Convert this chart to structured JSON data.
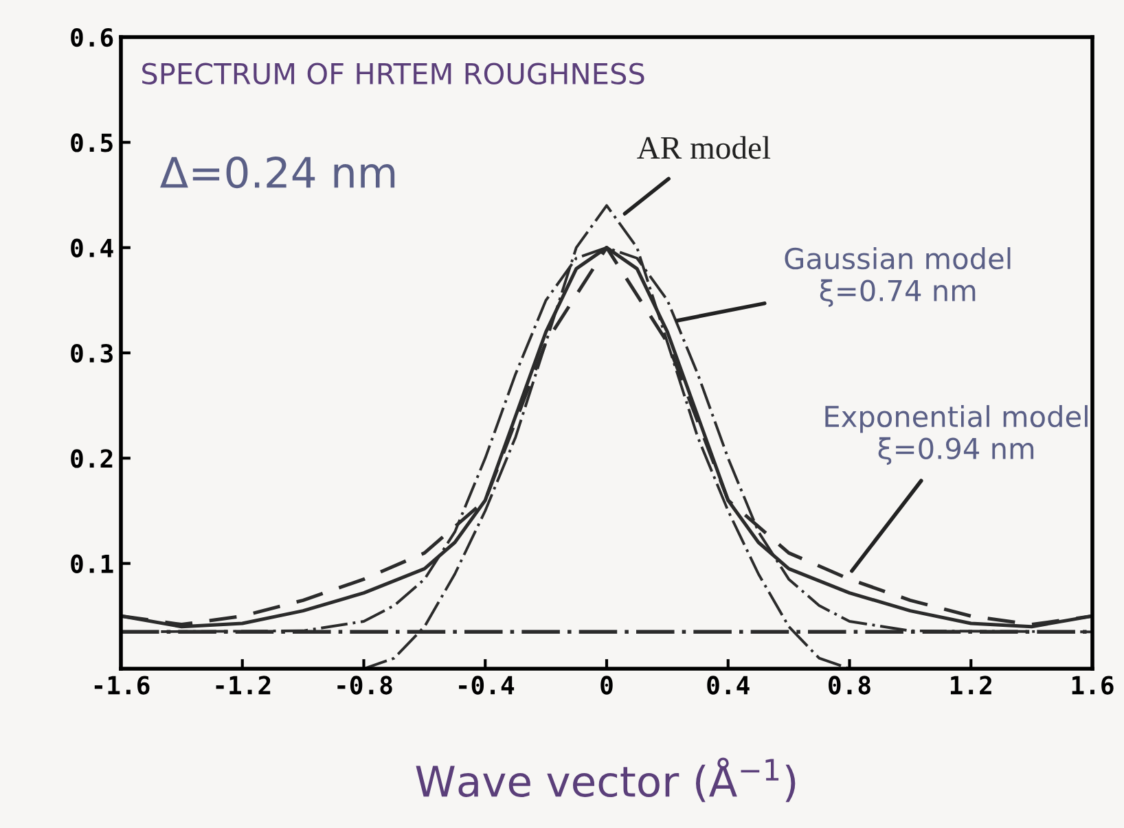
{
  "chart_data": {
    "type": "line",
    "title": "SPECTRUM OF HRTEM ROUGHNESS",
    "xlabel": "Wave vector (Å$^{−1}$)",
    "series": [
      {
        "color": "#2b2b2b",
        "line_style": "dashdot",
        "x": [
          -1.6,
          -0.8,
          -0.7,
          -0.6,
          -0.5,
          -0.4,
          -0.3,
          -0.2,
          -0.1,
          0,
          0.1,
          0.2,
          0.3,
          0.4,
          0.5,
          0.6,
          0.7,
          0.8,
          1.6
        ],
        "values": [
          0,
          0,
          0.01,
          0.04,
          0.09,
          0.15,
          0.22,
          0.31,
          0.4,
          0.44,
          0.4,
          0.31,
          0.22,
          0.15,
          0.09,
          0.04,
          0.01,
          0,
          0
        ]
      },
      {
        "color": "#2b2b2b",
        "line_style": "dashdot",
        "x": [
          -1.6,
          -1.0,
          -0.8,
          -0.7,
          -0.6,
          -0.5,
          -0.4,
          -0.3,
          -0.2,
          -0.1,
          0,
          0.1,
          0.2,
          0.3,
          0.4,
          0.5,
          0.6,
          0.7,
          0.8,
          1.0,
          1.6
        ],
        "values": [
          0.035,
          0.036,
          0.045,
          0.06,
          0.085,
          0.13,
          0.2,
          0.28,
          0.35,
          0.39,
          0.4,
          0.39,
          0.35,
          0.28,
          0.2,
          0.13,
          0.085,
          0.06,
          0.045,
          0.036,
          0.035
        ]
      },
      {
        "color": "#2b2b2b",
        "line_style": "solid",
        "x": [
          -1.6,
          -1.4,
          -1.2,
          -1.0,
          -0.8,
          -0.6,
          -0.5,
          -0.4,
          -0.3,
          -0.2,
          -0.1,
          0,
          0.1,
          0.2,
          0.3,
          0.4,
          0.5,
          0.6,
          0.8,
          1.0,
          1.2,
          1.4,
          1.6
        ],
        "values": [
          0.05,
          0.04,
          0.043,
          0.055,
          0.072,
          0.095,
          0.12,
          0.16,
          0.24,
          0.32,
          0.38,
          0.4,
          0.38,
          0.32,
          0.24,
          0.16,
          0.12,
          0.095,
          0.072,
          0.055,
          0.043,
          0.04,
          0.05
        ]
      },
      {
        "color": "#2b2b2b",
        "line_style": "dashed",
        "x": [
          -1.6,
          -1.4,
          -1.2,
          -1.0,
          -0.8,
          -0.6,
          -0.4,
          -0.2,
          0,
          0.2,
          0.4,
          0.6,
          0.8,
          1.0,
          1.2,
          1.4,
          1.6
        ],
        "values": [
          0.05,
          0.042,
          0.05,
          0.065,
          0.085,
          0.11,
          0.16,
          0.31,
          0.4,
          0.31,
          0.16,
          0.11,
          0.085,
          0.065,
          0.05,
          0.042,
          0.05
        ]
      }
    ],
    "ref_lines": [
      {
        "axis": "y",
        "value": 0.035,
        "line_style": "dashdot",
        "color": "#2b2b2b"
      }
    ],
    "annotations": [
      "Δ=0.24 nm",
      {
        "text": "AR model",
        "x": 0.05,
        "y": 0.43
      },
      {
        "text": "Gaussian model\nξ=0.74 nm",
        "x": 0.22,
        "y": 0.33
      },
      {
        "text": "Exponential model\nξ=0.94 nm",
        "x": 0.8,
        "y": 0.09
      }
    ],
    "xlim": [
      -1.6,
      1.6
    ],
    "ylim": [
      0,
      0.6
    ],
    "xticks": [
      -1.6,
      -1.2,
      -0.8,
      -0.4,
      0,
      0.4,
      0.8,
      1.2,
      1.6
    ],
    "yticks": [
      {
        "value": 0,
        "label": null
      },
      0.1,
      0.2,
      0.3,
      0.4,
      0.5,
      0.6
    ],
    "grid": false,
    "legend": false,
    "marker": "none"
  }
}
